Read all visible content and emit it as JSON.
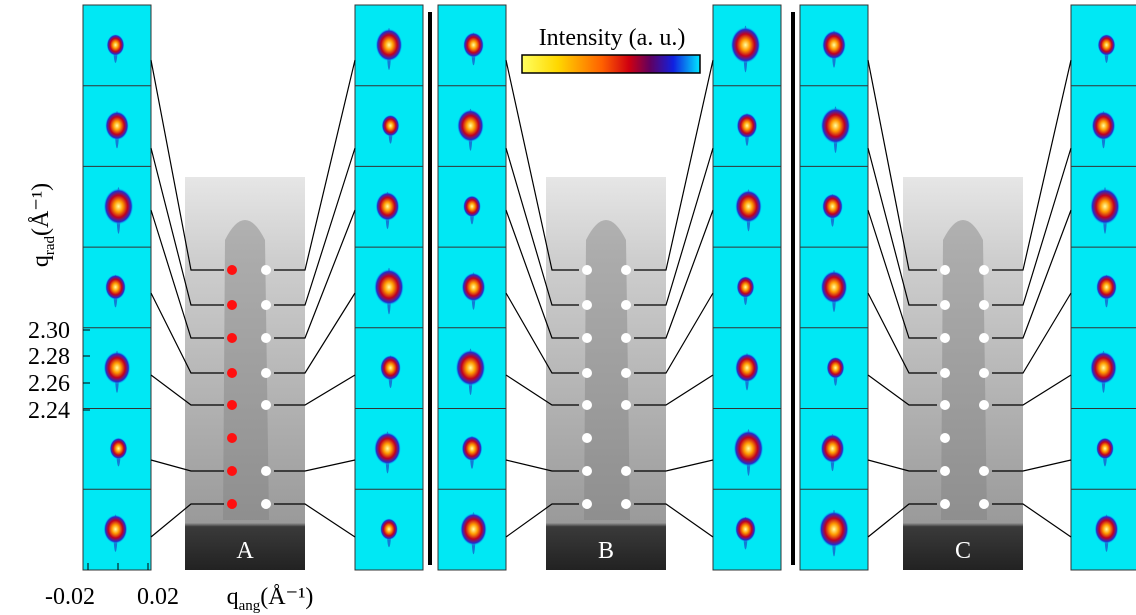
{
  "colorbar": {
    "label": "Intensity (a. u.)"
  },
  "axes": {
    "y_label": {
      "symbol": "q",
      "subscript": "rad",
      "unit": "(Å⁻¹)"
    },
    "y_ticks": [
      "2.30",
      "2.28",
      "2.26",
      "2.24"
    ],
    "x_label": {
      "symbol": "q",
      "subscript": "ang",
      "unit": "(Å⁻¹)"
    },
    "x_ticks": [
      "-0.02",
      "0.02"
    ]
  },
  "panels": [
    {
      "label": "A"
    },
    {
      "label": "B"
    },
    {
      "label": "C"
    }
  ]
}
